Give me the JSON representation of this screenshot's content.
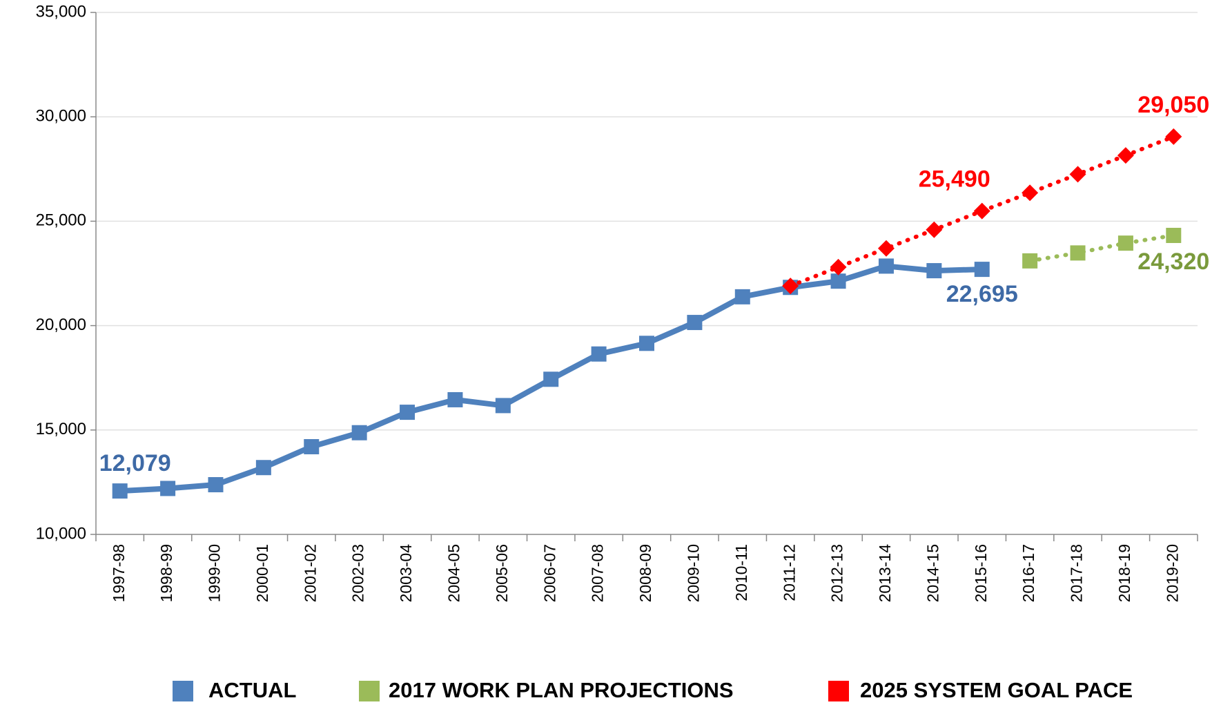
{
  "chart_data": {
    "type": "line",
    "categories": [
      "1997-98",
      "1998-99",
      "1999-00",
      "2000-01",
      "2001-02",
      "2002-03",
      "2003-04",
      "2004-05",
      "2005-06",
      "2006-07",
      "2007-08",
      "2008-09",
      "2009-10",
      "2010-11",
      "2011-12",
      "2012-13",
      "2013-14",
      "2014-15",
      "2015-16",
      "2016-17",
      "2017-18",
      "2018-19",
      "2019-20"
    ],
    "series": [
      {
        "name": "ACTUAL",
        "color": "#4f81bd",
        "marker": "square",
        "dash": "solid",
        "values": [
          12079,
          12200,
          12380,
          13200,
          14200,
          14870,
          15850,
          16450,
          16170,
          17430,
          18640,
          19150,
          20150,
          21380,
          21830,
          22130,
          22850,
          22630,
          22695,
          null,
          null,
          null,
          null
        ],
        "value_labels": [
          "12,079",
          null,
          null,
          null,
          null,
          null,
          null,
          null,
          null,
          null,
          null,
          null,
          null,
          null,
          null,
          null,
          null,
          null,
          "22,695",
          null,
          null,
          null,
          null
        ]
      },
      {
        "name": "2017 WORK PLAN PROJECTIONS",
        "color": "#9bbb59",
        "marker": "square",
        "dash": "dotted",
        "values": [
          null,
          null,
          null,
          null,
          null,
          null,
          null,
          null,
          null,
          null,
          null,
          null,
          null,
          null,
          null,
          null,
          null,
          null,
          null,
          23100,
          23480,
          23950,
          24320
        ],
        "value_labels": [
          null,
          null,
          null,
          null,
          null,
          null,
          null,
          null,
          null,
          null,
          null,
          null,
          null,
          null,
          null,
          null,
          null,
          null,
          null,
          null,
          null,
          null,
          "24,320"
        ]
      },
      {
        "name": "2025 SYSTEM GOAL PACE",
        "color": "#ff0000",
        "marker": "diamond",
        "dash": "dotted",
        "values": [
          null,
          null,
          null,
          null,
          null,
          null,
          null,
          null,
          null,
          null,
          null,
          null,
          null,
          null,
          21900,
          22800,
          23700,
          24590,
          25490,
          26360,
          27250,
          28150,
          29050
        ],
        "value_labels": [
          null,
          null,
          null,
          null,
          null,
          null,
          null,
          null,
          null,
          null,
          null,
          null,
          null,
          null,
          null,
          null,
          null,
          null,
          "25,490",
          null,
          null,
          null,
          "29,050"
        ]
      }
    ],
    "ylim": [
      10000,
      35000
    ],
    "yticks": [
      {
        "value": 10000,
        "label": "10,000"
      },
      {
        "value": 15000,
        "label": "15,000"
      },
      {
        "value": 20000,
        "label": "20,000"
      },
      {
        "value": 25000,
        "label": "25,000"
      },
      {
        "value": 30000,
        "label": "30,000"
      },
      {
        "value": 35000,
        "label": "35,000"
      }
    ],
    "grid": true,
    "legend": "bottom"
  }
}
